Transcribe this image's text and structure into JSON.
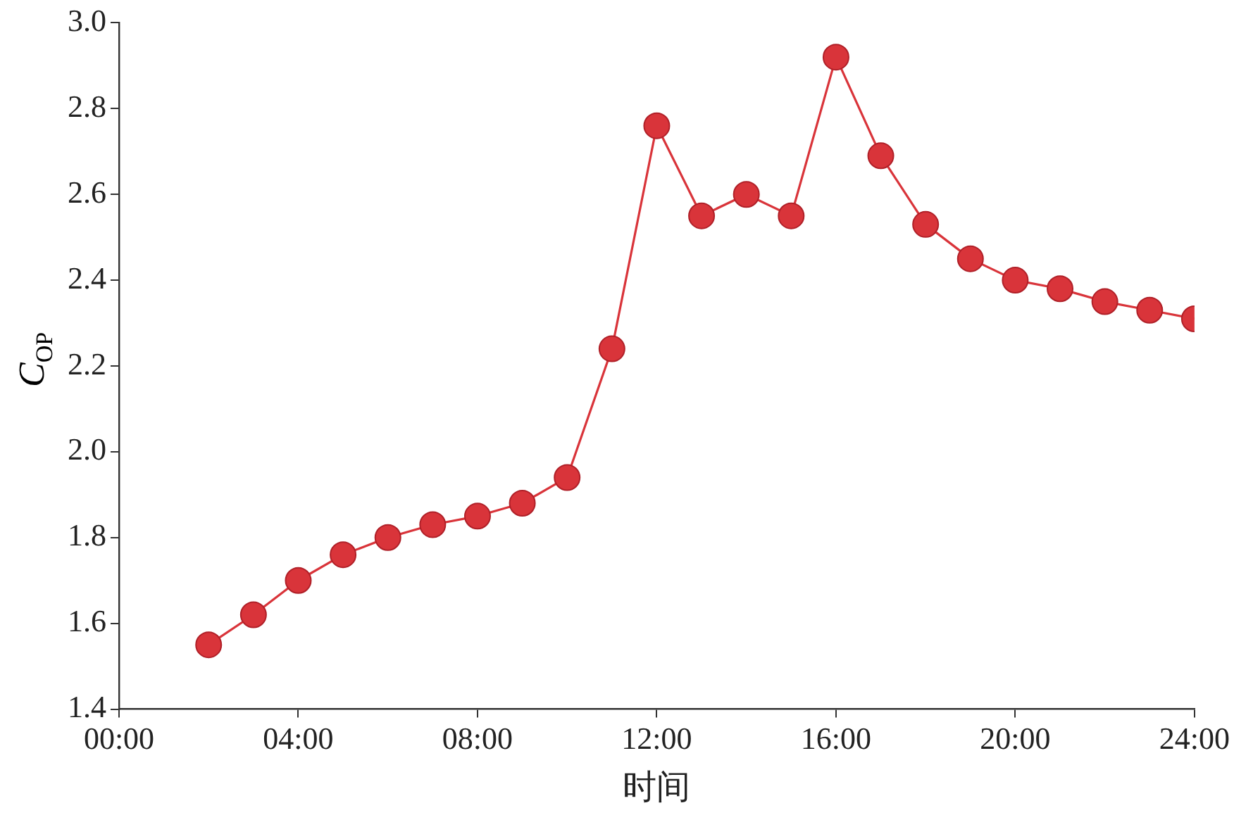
{
  "chart_data": {
    "type": "line",
    "xlabel": "时间",
    "ylabel": "C$_{OP}$",
    "x": [
      2,
      3,
      4,
      5,
      6,
      7,
      8,
      9,
      10,
      11,
      12,
      13,
      14,
      15,
      16,
      17,
      18,
      19,
      20,
      21,
      22,
      23,
      24
    ],
    "series": [
      {
        "color": "#d9343a",
        "values": [
          1.55,
          1.62,
          1.7,
          1.76,
          1.8,
          1.83,
          1.85,
          1.88,
          1.94,
          2.24,
          2.76,
          2.55,
          2.6,
          2.55,
          2.92,
          2.69,
          2.53,
          2.45,
          2.4,
          2.38,
          2.35,
          2.33,
          2.31
        ]
      }
    ],
    "xlim": [
      0,
      24
    ],
    "xticks": [
      {
        "value": 0,
        "label": "00:00"
      },
      {
        "value": 4,
        "label": "04:00"
      },
      {
        "value": 8,
        "label": "08:00"
      },
      {
        "value": 12,
        "label": "12:00"
      },
      {
        "value": 16,
        "label": "16:00"
      },
      {
        "value": 20,
        "label": "20:00"
      },
      {
        "value": 24,
        "label": "24:00"
      }
    ],
    "ylim": [
      1.4,
      3.0
    ],
    "yticks": [
      {
        "value": 1.4,
        "label": "1.4"
      },
      {
        "value": 1.6,
        "label": "1.6"
      },
      {
        "value": 1.8,
        "label": "1.8"
      },
      {
        "value": 2.0,
        "label": "2.0"
      },
      {
        "value": 2.2,
        "label": "2.2"
      },
      {
        "value": 2.4,
        "label": "2.4"
      },
      {
        "value": 2.6,
        "label": "2.6"
      },
      {
        "value": 2.8,
        "label": "2.8"
      },
      {
        "value": 3.0,
        "label": "3.0"
      }
    ],
    "grid": false,
    "legend": false,
    "marker": "circle",
    "line_style": "solid"
  }
}
